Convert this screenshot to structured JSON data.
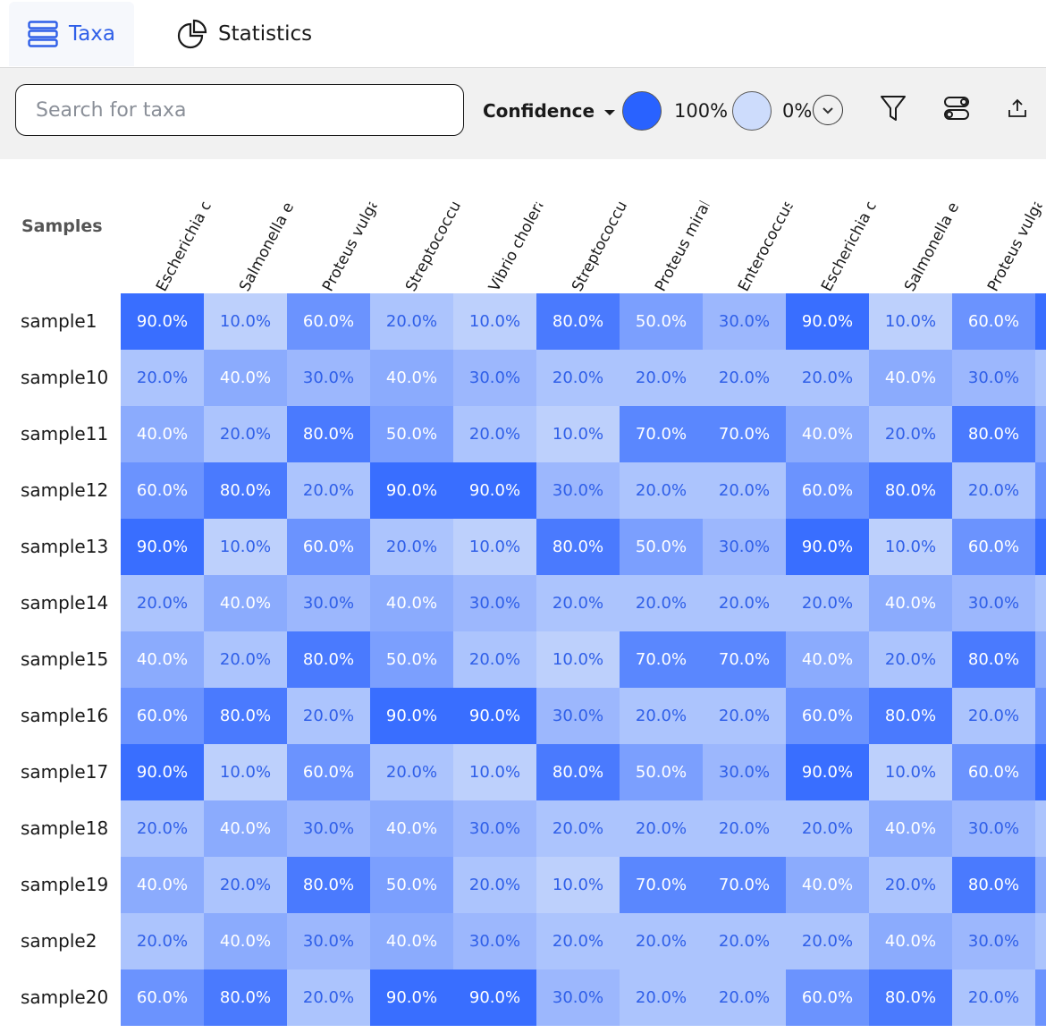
{
  "tabs": [
    {
      "label": "Taxa",
      "icon": "list-icon",
      "active": true
    },
    {
      "label": "Statistics",
      "icon": "pie-chart-icon",
      "active": false
    }
  ],
  "toolbar": {
    "search_placeholder": "Search for taxa",
    "metric_label": "Confidence",
    "scale_high_color": "#2962ff",
    "scale_high_label": "100%",
    "scale_low_color": "#cddcfc",
    "scale_low_label": "0%",
    "icons": [
      "chevron-down-icon",
      "filter-icon",
      "toggle-icon",
      "export-icon"
    ]
  },
  "table": {
    "row_header": "Samples",
    "columns": [
      "Escherichia coli",
      "Salmonella enterica",
      "Proteus vulgaris",
      "Streptococcus",
      "Vibrio cholerae",
      "Streptococcus",
      "Proteus mirabilis",
      "Enterococcus faecalis",
      "Escherichia coli",
      "Salmonella enterica",
      "Proteus vulgaris"
    ],
    "rows": [
      {
        "sample": "sample1",
        "values": [
          "90.0%",
          "10.0%",
          "60.0%",
          "20.0%",
          "10.0%",
          "80.0%",
          "50.0%",
          "30.0%",
          "90.0%",
          "10.0%",
          "60.0%"
        ]
      },
      {
        "sample": "sample10",
        "values": [
          "20.0%",
          "40.0%",
          "30.0%",
          "40.0%",
          "30.0%",
          "20.0%",
          "20.0%",
          "20.0%",
          "20.0%",
          "40.0%",
          "30.0%"
        ]
      },
      {
        "sample": "sample11",
        "values": [
          "40.0%",
          "20.0%",
          "80.0%",
          "50.0%",
          "20.0%",
          "10.0%",
          "70.0%",
          "70.0%",
          "40.0%",
          "20.0%",
          "80.0%"
        ]
      },
      {
        "sample": "sample12",
        "values": [
          "60.0%",
          "80.0%",
          "20.0%",
          "90.0%",
          "90.0%",
          "30.0%",
          "20.0%",
          "20.0%",
          "60.0%",
          "80.0%",
          "20.0%"
        ]
      },
      {
        "sample": "sample13",
        "values": [
          "90.0%",
          "10.0%",
          "60.0%",
          "20.0%",
          "10.0%",
          "80.0%",
          "50.0%",
          "30.0%",
          "90.0%",
          "10.0%",
          "60.0%"
        ]
      },
      {
        "sample": "sample14",
        "values": [
          "20.0%",
          "40.0%",
          "30.0%",
          "40.0%",
          "30.0%",
          "20.0%",
          "20.0%",
          "20.0%",
          "20.0%",
          "40.0%",
          "30.0%"
        ]
      },
      {
        "sample": "sample15",
        "values": [
          "40.0%",
          "20.0%",
          "80.0%",
          "50.0%",
          "20.0%",
          "10.0%",
          "70.0%",
          "70.0%",
          "40.0%",
          "20.0%",
          "80.0%"
        ]
      },
      {
        "sample": "sample16",
        "values": [
          "60.0%",
          "80.0%",
          "20.0%",
          "90.0%",
          "90.0%",
          "30.0%",
          "20.0%",
          "20.0%",
          "60.0%",
          "80.0%",
          "20.0%"
        ]
      },
      {
        "sample": "sample17",
        "values": [
          "90.0%",
          "10.0%",
          "60.0%",
          "20.0%",
          "10.0%",
          "80.0%",
          "50.0%",
          "30.0%",
          "90.0%",
          "10.0%",
          "60.0%"
        ]
      },
      {
        "sample": "sample18",
        "values": [
          "20.0%",
          "40.0%",
          "30.0%",
          "40.0%",
          "30.0%",
          "20.0%",
          "20.0%",
          "20.0%",
          "20.0%",
          "40.0%",
          "30.0%"
        ]
      },
      {
        "sample": "sample19",
        "values": [
          "40.0%",
          "20.0%",
          "80.0%",
          "50.0%",
          "20.0%",
          "10.0%",
          "70.0%",
          "70.0%",
          "40.0%",
          "20.0%",
          "80.0%"
        ]
      },
      {
        "sample": "sample2",
        "values": [
          "20.0%",
          "40.0%",
          "30.0%",
          "40.0%",
          "30.0%",
          "20.0%",
          "20.0%",
          "20.0%",
          "20.0%",
          "40.0%",
          "30.0%"
        ]
      },
      {
        "sample": "sample20",
        "values": [
          "60.0%",
          "80.0%",
          "20.0%",
          "90.0%",
          "90.0%",
          "30.0%",
          "20.0%",
          "20.0%",
          "60.0%",
          "80.0%",
          "20.0%"
        ]
      }
    ]
  }
}
